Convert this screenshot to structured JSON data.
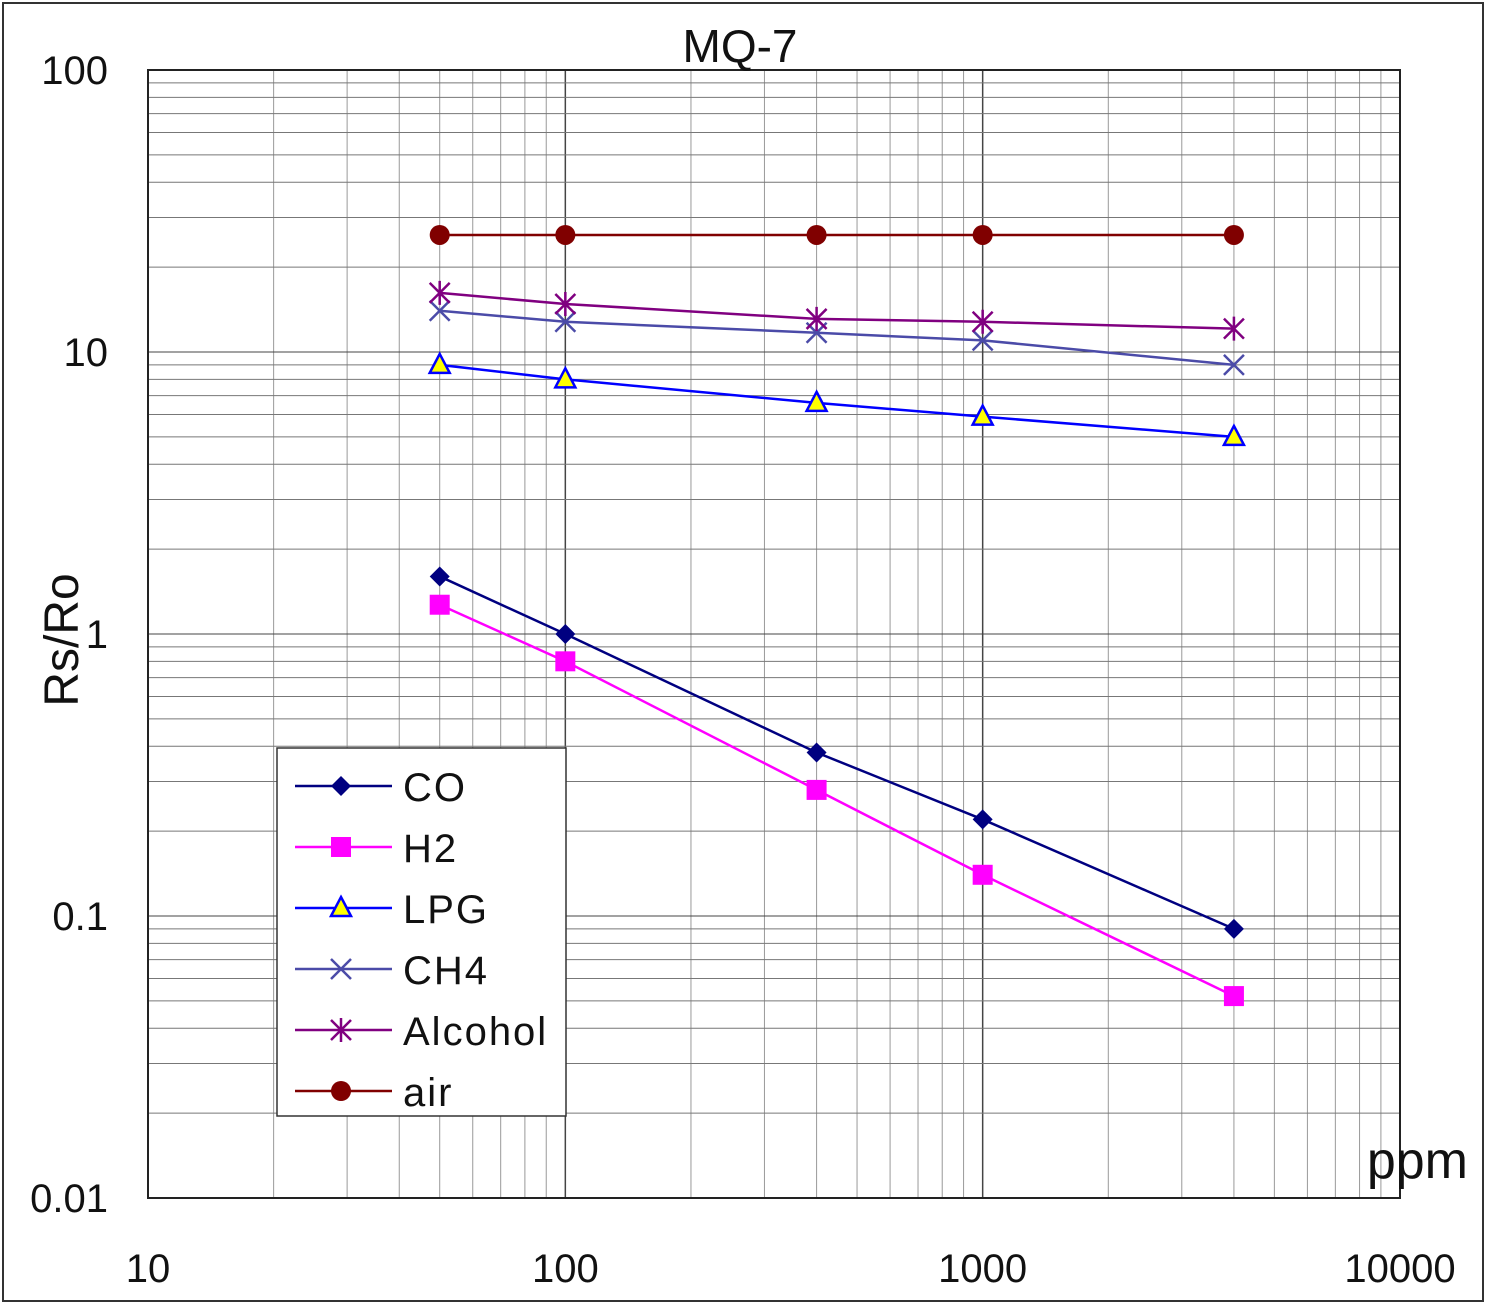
{
  "chart_data": {
    "type": "line",
    "title": "MQ-7",
    "xlabel": "ppm",
    "ylabel": "Rs/Ro",
    "x_scale": "log",
    "y_scale": "log",
    "xlim": [
      10,
      10000
    ],
    "ylim": [
      0.01,
      100
    ],
    "x_ticks": [
      "10",
      "100",
      "1000",
      "10000"
    ],
    "y_ticks": [
      "0.01",
      "0.1",
      "1",
      "10",
      "100"
    ],
    "grid": true,
    "legend_position": "bottom-left",
    "x": [
      50,
      100,
      400,
      1000,
      4000
    ],
    "series": [
      {
        "name": "CO",
        "color": "#000080",
        "marker": "diamond",
        "values": [
          1.6,
          1.0,
          0.38,
          0.22,
          0.09
        ]
      },
      {
        "name": "H2",
        "color": "#ff00ff",
        "marker": "square",
        "values": [
          1.27,
          0.8,
          0.28,
          0.14,
          0.052
        ]
      },
      {
        "name": "LPG",
        "color": "#0000ff",
        "marker": "triangle",
        "values": [
          9.0,
          8.0,
          6.6,
          5.9,
          5.0
        ]
      },
      {
        "name": "CH4",
        "color": "#4b4ba8",
        "marker": "x",
        "values": [
          14,
          12.8,
          11.7,
          11.0,
          9.0
        ]
      },
      {
        "name": "Alcohol",
        "color": "#800080",
        "marker": "star",
        "values": [
          16.2,
          14.8,
          13.1,
          12.8,
          12.1
        ]
      },
      {
        "name": "air",
        "color": "#800000",
        "marker": "circle",
        "values": [
          26,
          26,
          26,
          26,
          26
        ]
      }
    ]
  }
}
